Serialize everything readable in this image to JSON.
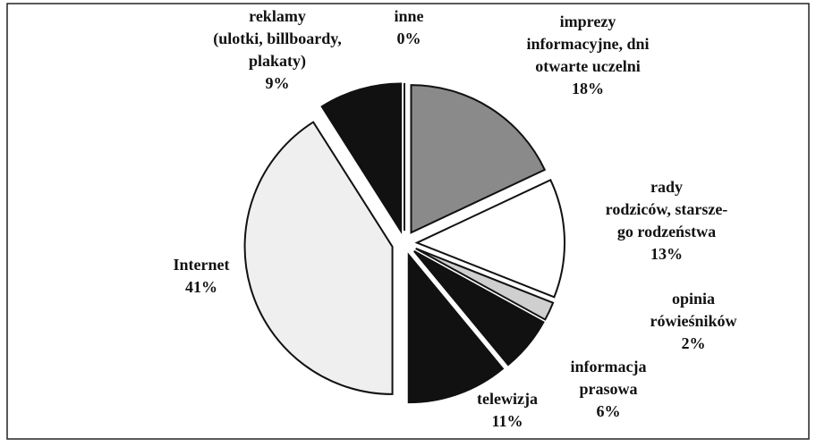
{
  "chart_data": {
    "type": "pie",
    "categories": [
      "imprezy\ninformacyjne, dni\notwarte uczelni",
      "rady\nrodziców, starsze-\ngo rodzeństwa",
      "opinia\nrówieśników",
      "informacja\nprasowa",
      "telewizja",
      "Internet",
      "reklamy\n(ulotki, billboardy,\nplakaty)",
      "inne"
    ],
    "values": [
      18,
      13,
      2,
      6,
      11,
      41,
      9,
      0
    ],
    "value_labels": [
      "18%",
      "13%",
      "2%",
      "6%",
      "11%",
      "41%",
      "9%",
      "0%"
    ],
    "colors": [
      "#8a8a8a",
      "#ffffff",
      "#cfcfcf",
      "#111111",
      "#111111",
      "#efefef",
      "#111111",
      "#ffffff"
    ]
  }
}
